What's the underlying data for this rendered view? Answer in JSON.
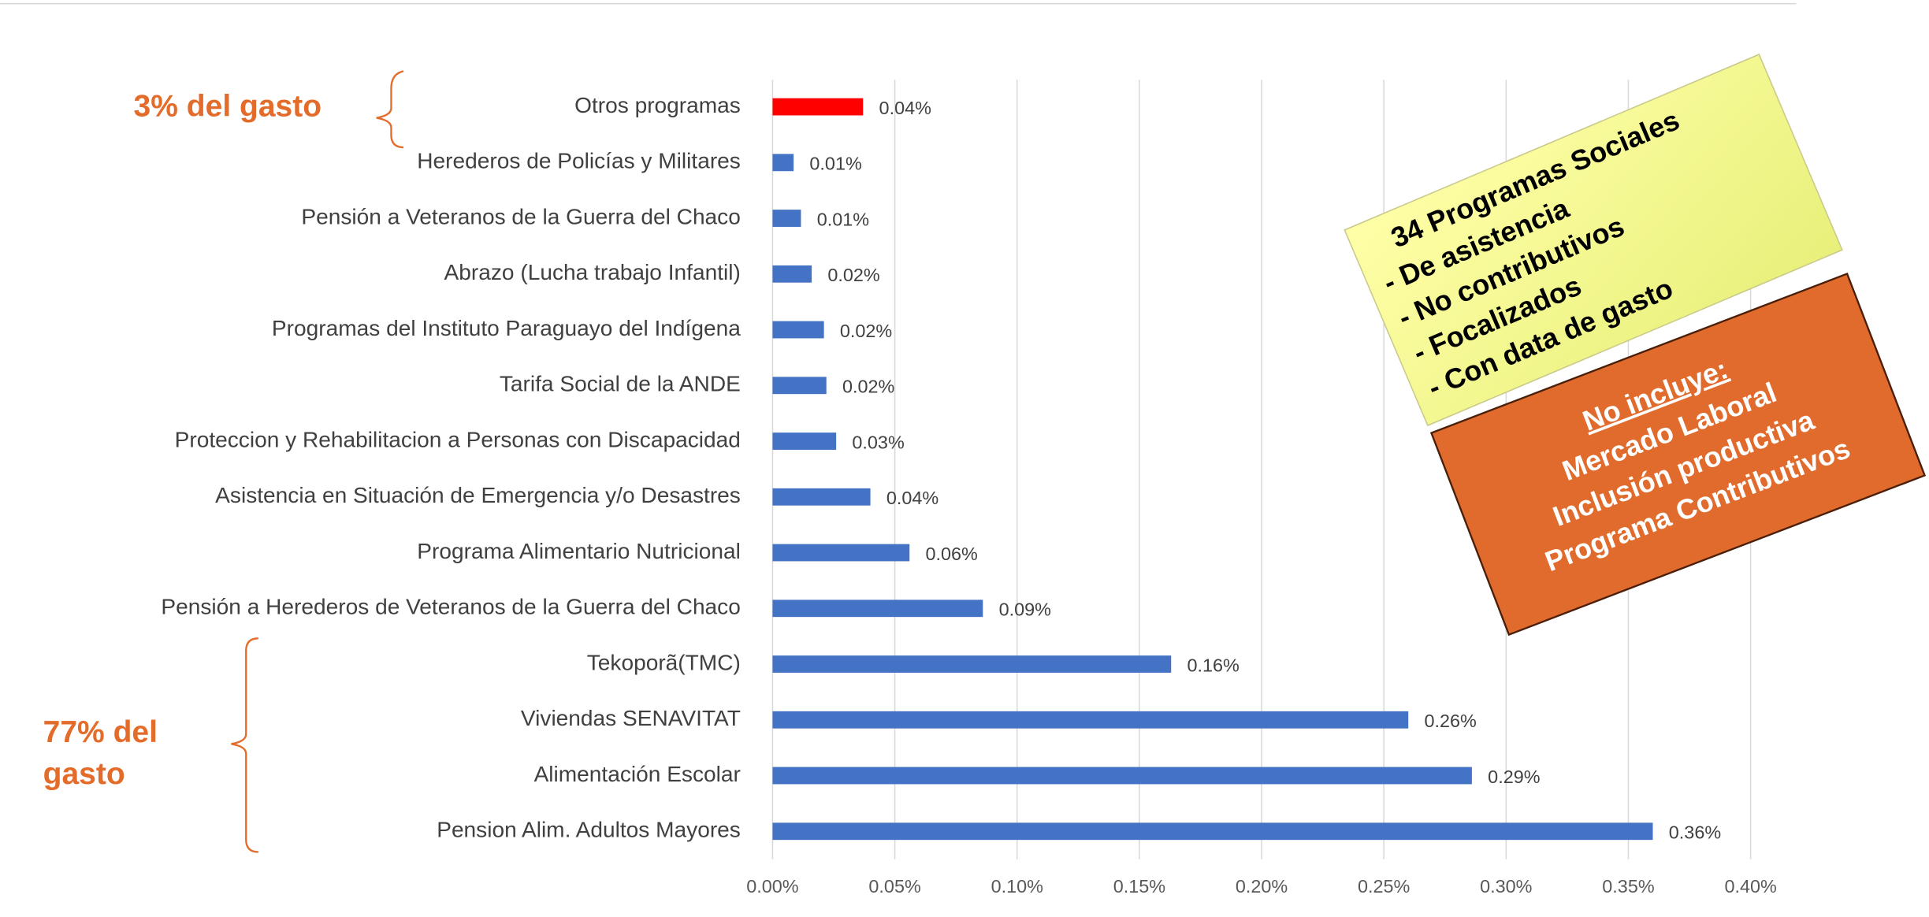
{
  "chart_data": {
    "type": "barh",
    "categories": [
      "Otros programas",
      "Herederos de Policías y Militares",
      "Pensión a Veteranos de la Guerra del Chaco",
      "Abrazo (Lucha trabajo Infantil)",
      "Programas del Instituto Paraguayo del Indígena",
      "Tarifa Social de la ANDE",
      "Proteccion y Rehabilitacion a Personas con Discapacidad",
      "Asistencia en Situación de Emergencia y/o Desastres",
      "Programa Alimentario Nutricional",
      "Pensión a Herederos de Veteranos de la Guerra del Chaco",
      "Tekoporã(TMC)",
      "Viviendas SENAVITAT",
      "Alimentación Escolar",
      "Pension Alim. Adultos Mayores"
    ],
    "values": [
      0.037,
      0.0086,
      0.0116,
      0.016,
      0.021,
      0.022,
      0.026,
      0.04,
      0.056,
      0.086,
      0.163,
      0.26,
      0.286,
      0.36
    ],
    "value_labels": [
      "0.04%",
      "0.01%",
      "0.01%",
      "0.02%",
      "0.02%",
      "0.02%",
      "0.03%",
      "0.04%",
      "0.06%",
      "0.09%",
      "0.16%",
      "0.26%",
      "0.29%",
      "0.36%"
    ],
    "colors": [
      "#ff0000",
      "#4472c4",
      "#4472c4",
      "#4472c4",
      "#4472c4",
      "#4472c4",
      "#4472c4",
      "#4472c4",
      "#4472c4",
      "#4472c4",
      "#4472c4",
      "#4472c4",
      "#4472c4",
      "#4472c4"
    ],
    "xlim": [
      0,
      0.4
    ],
    "xticks": [
      {
        "value": 0,
        "label": "0.00%"
      },
      {
        "value": 0.05,
        "label": "0.05%"
      },
      {
        "value": 0.1,
        "label": "0.10%"
      },
      {
        "value": 0.15,
        "label": "0.15%"
      },
      {
        "value": 0.2,
        "label": "0.20%"
      },
      {
        "value": 0.25,
        "label": "0.25%"
      },
      {
        "value": 0.3,
        "label": "0.30%"
      },
      {
        "value": 0.35,
        "label": "0.35%"
      },
      {
        "value": 0.4,
        "label": "0.40%"
      }
    ],
    "grid": true,
    "annotations": {
      "top_bracket": "3% del gasto",
      "bottom_bracket": [
        "77% del",
        "gasto"
      ],
      "yellow_box": [
        "34 Programas Sociales",
        "- De asistencia",
        "- No contributivos",
        "- Focalizados",
        "- Con data de gasto"
      ],
      "orange_box": [
        "No incluye:",
        "Mercado Laboral",
        "Inclusión productiva",
        "Programa Contributivos"
      ]
    }
  }
}
